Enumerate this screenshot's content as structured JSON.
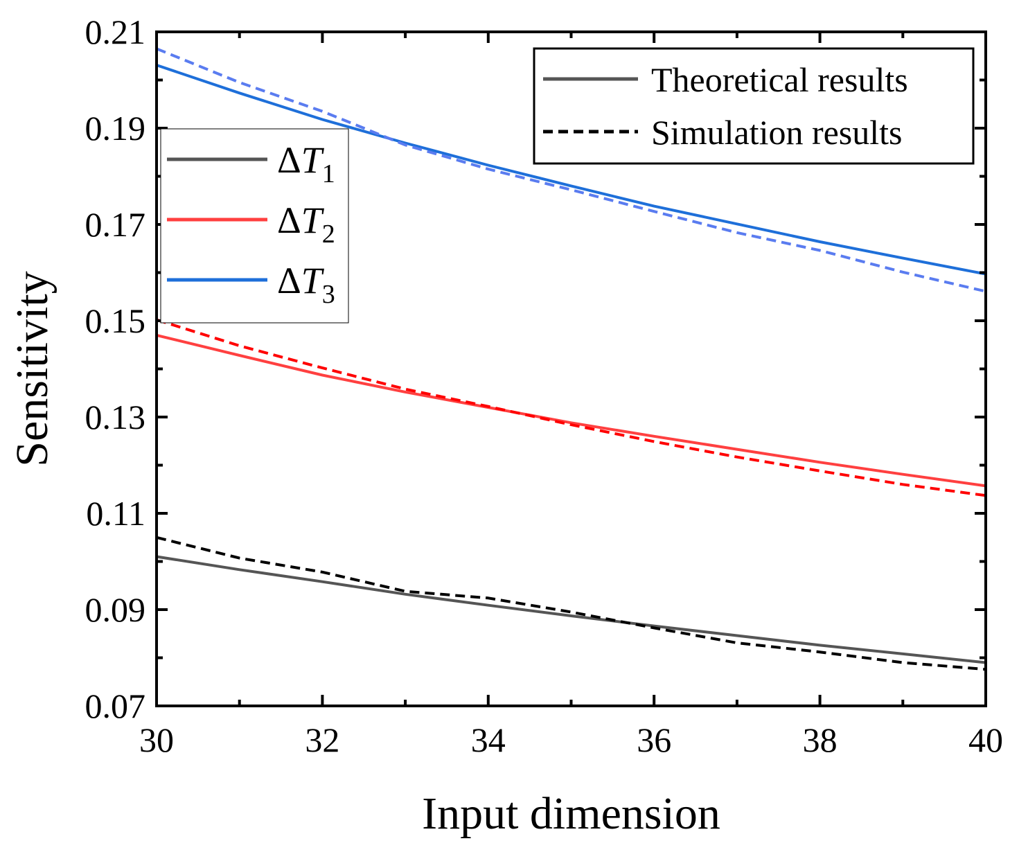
{
  "chart_data": {
    "type": "line",
    "title": "",
    "xlabel": "Input dimension",
    "ylabel": "Sensitivity",
    "xlim": [
      30,
      40
    ],
    "ylim": [
      0.07,
      0.21
    ],
    "x_ticks": [
      30,
      32,
      34,
      36,
      38,
      40
    ],
    "x_tick_labels": [
      "30",
      "32",
      "34",
      "36",
      "38",
      "40"
    ],
    "y_ticks": [
      0.07,
      0.09,
      0.11,
      0.13,
      0.15,
      0.17,
      0.19,
      0.21
    ],
    "y_tick_labels": [
      "0.07",
      "0.09",
      "0.11",
      "0.13",
      "0.15",
      "0.17",
      "0.19",
      "0.21"
    ],
    "x_minor_step": 1,
    "y_minor_step": 0.01,
    "grid": false,
    "style_legend": {
      "position": "top-right",
      "entries": [
        {
          "label": "Theoretical results",
          "style": "solid",
          "color": "#555555"
        },
        {
          "label": "Simulation results",
          "style": "dashed",
          "color": "#000000"
        }
      ]
    },
    "series_legend": {
      "position": "top-left",
      "entries": [
        {
          "symbol": "Δ",
          "var": "T",
          "sub": "1",
          "color": "#555555"
        },
        {
          "symbol": "Δ",
          "var": "T",
          "sub": "2",
          "color": "#ff4040"
        },
        {
          "symbol": "Δ",
          "var": "T",
          "sub": "3",
          "color": "#1e6fd9"
        }
      ]
    },
    "series": [
      {
        "name": "ΔT1 theoretical",
        "color": "#555555",
        "dash": "solid",
        "x": [
          30,
          31,
          32,
          33,
          34,
          35,
          36,
          37,
          38,
          39,
          40
        ],
        "y": [
          0.101,
          0.0983,
          0.0958,
          0.0932,
          0.0909,
          0.0887,
          0.0866,
          0.0846,
          0.0826,
          0.0808,
          0.079
        ]
      },
      {
        "name": "ΔT1 simulation",
        "color": "#000000",
        "dash": "dashed",
        "x": [
          30,
          31,
          32,
          33,
          34,
          35,
          36,
          37,
          38,
          39,
          40
        ],
        "y": [
          0.105,
          0.1007,
          0.0978,
          0.0938,
          0.0924,
          0.0895,
          0.0862,
          0.0831,
          0.0812,
          0.079,
          0.0776
        ]
      },
      {
        "name": "ΔT2 theoretical",
        "color": "#ff4040",
        "dash": "solid",
        "x": [
          30,
          31,
          32,
          33,
          34,
          35,
          36,
          37,
          38,
          39,
          40
        ],
        "y": [
          0.147,
          0.1428,
          0.1387,
          0.1352,
          0.132,
          0.1288,
          0.126,
          0.1233,
          0.1206,
          0.1181,
          0.1157
        ]
      },
      {
        "name": "ΔT2 simulation",
        "color": "#ff0000",
        "dash": "dashed",
        "x": [
          30,
          31,
          32,
          33,
          34,
          35,
          36,
          37,
          38,
          39,
          40
        ],
        "y": [
          0.1502,
          0.1448,
          0.1402,
          0.1358,
          0.1322,
          0.1284,
          0.1249,
          0.1217,
          0.1188,
          0.116,
          0.1137
        ]
      },
      {
        "name": "ΔT3 theoretical",
        "color": "#1e6fd9",
        "dash": "solid",
        "x": [
          30,
          31,
          32,
          33,
          34,
          35,
          36,
          37,
          38,
          39,
          40
        ],
        "y": [
          0.2031,
          0.1973,
          0.1918,
          0.1869,
          0.1823,
          0.178,
          0.1738,
          0.1701,
          0.1664,
          0.163,
          0.1597
        ]
      },
      {
        "name": "ΔT3 simulation",
        "color": "#5a7cf0",
        "dash": "dashed",
        "x": [
          30,
          31,
          32,
          33,
          34,
          35,
          36,
          37,
          38,
          39,
          40
        ],
        "y": [
          0.2065,
          0.1995,
          0.1935,
          0.1865,
          0.1815,
          0.1772,
          0.1727,
          0.1683,
          0.1646,
          0.1601,
          0.1561
        ]
      }
    ]
  }
}
